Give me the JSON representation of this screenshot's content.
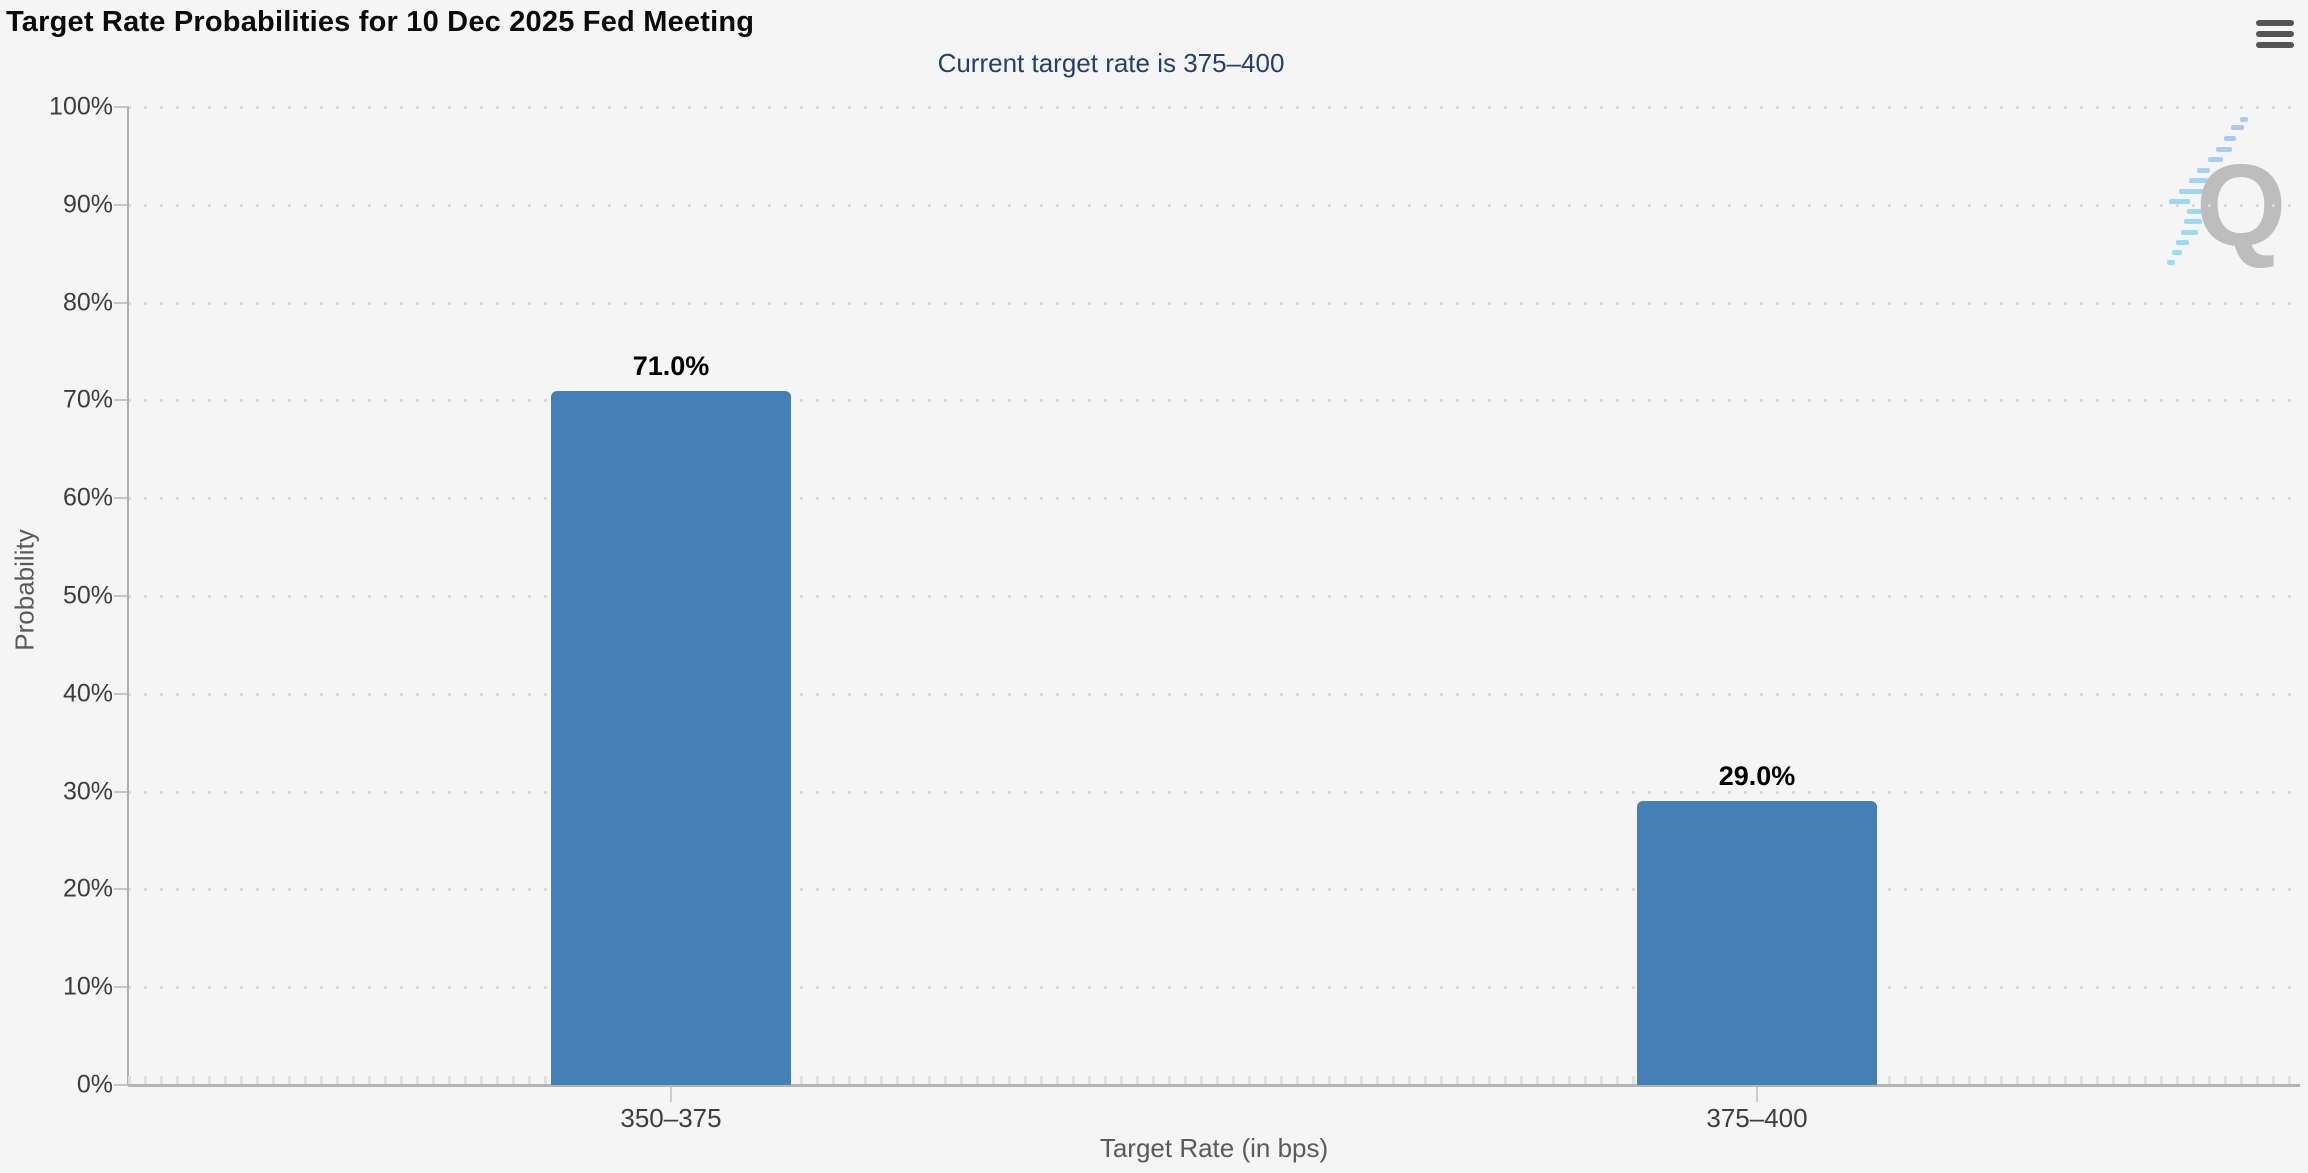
{
  "header": {
    "title": "Target Rate Probabilities for 10 Dec 2025 Fed Meeting",
    "menu_icon": "hamburger-menu-icon"
  },
  "chart_data": {
    "type": "bar",
    "title": "Target Rate Probabilities for 10 Dec 2025 Fed Meeting",
    "subtitle": "Current target rate is 375–400",
    "categories": [
      "350–375",
      "375–400"
    ],
    "values": [
      71.0,
      29.0
    ],
    "value_labels": [
      "71.0%",
      "29.0%"
    ],
    "xlabel": "Target Rate (in bps)",
    "ylabel": "Probability",
    "ylim": [
      0,
      100
    ],
    "yticks": [
      "0%",
      "10%",
      "20%",
      "30%",
      "40%",
      "50%",
      "60%",
      "70%",
      "80%",
      "90%",
      "100%"
    ],
    "grid": "dotted horizontal gridlines",
    "legend": "none",
    "bar_color": "#4480b5",
    "subtitle_color": "#273f68",
    "watermark_letter": "Q"
  }
}
